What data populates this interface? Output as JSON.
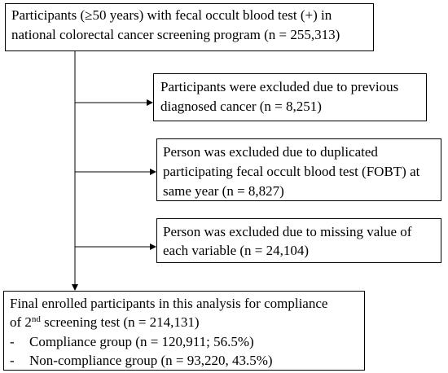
{
  "top": {
    "lines": [
      "Participants (≥50 years) with fecal occult blood test (+) in",
      "national colorectal cancer screening program (n = 255,313)"
    ]
  },
  "exclusions": [
    {
      "lines": [
        "Participants were excluded due to previous",
        "diagnosed cancer (n = 8,251)"
      ]
    },
    {
      "lines": [
        "Person was excluded due to duplicated",
        "participating fecal occult blood test (FOBT) at",
        "same year (n = 8,827)"
      ]
    },
    {
      "lines": [
        "Person was excluded due to missing value of",
        "each variable (n = 24,104)"
      ]
    }
  ],
  "final": {
    "line1": "Final enrolled participants in this analysis for compliance",
    "line2": {
      "before": "of 2",
      "superscript": "nd",
      "after": " screening test (n = 214,131)"
    },
    "items": [
      {
        "bullet": "-",
        "text": "Compliance group (n = 120,911; 56.5%)"
      },
      {
        "bullet": "-",
        "text": "Non-compliance group (n = 93,220, 43.5%)"
      }
    ]
  }
}
